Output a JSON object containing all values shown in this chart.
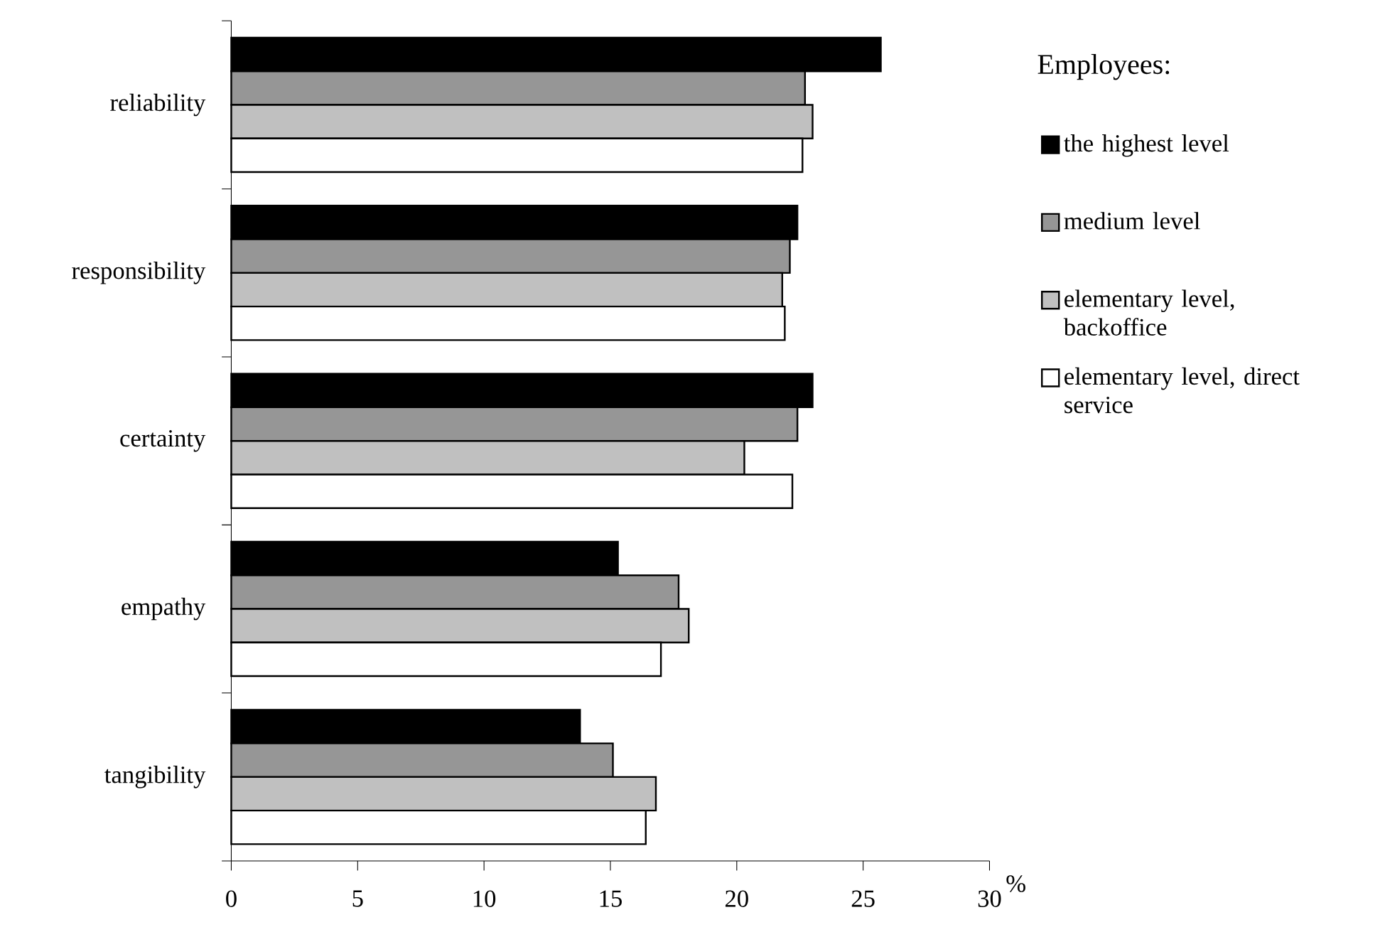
{
  "chart_data": {
    "type": "bar",
    "orientation": "horizontal",
    "xlabel": "%",
    "legend_title": "Employees:",
    "legend": "right",
    "categories": [
      "reliability",
      "responsibility",
      "certainty",
      "empathy",
      "tangibility"
    ],
    "series": [
      {
        "name": "the highest level",
        "color": "#000000",
        "values": [
          25.7,
          22.4,
          23.0,
          15.3,
          13.8
        ]
      },
      {
        "name": "medium level",
        "color": "#969696",
        "values": [
          22.7,
          22.1,
          22.4,
          17.7,
          15.1
        ]
      },
      {
        "name": "elementary level, backoffice",
        "color": "#c0c0c0",
        "values": [
          23.0,
          21.8,
          20.3,
          18.1,
          16.8
        ]
      },
      {
        "name": "elementary level, direct service",
        "color": "#ffffff",
        "values": [
          22.6,
          21.9,
          22.2,
          17.0,
          16.4
        ]
      }
    ],
    "xlim": [
      0,
      30
    ],
    "xticks": [
      0,
      5,
      10,
      15,
      20,
      25,
      30
    ],
    "grid": false
  }
}
